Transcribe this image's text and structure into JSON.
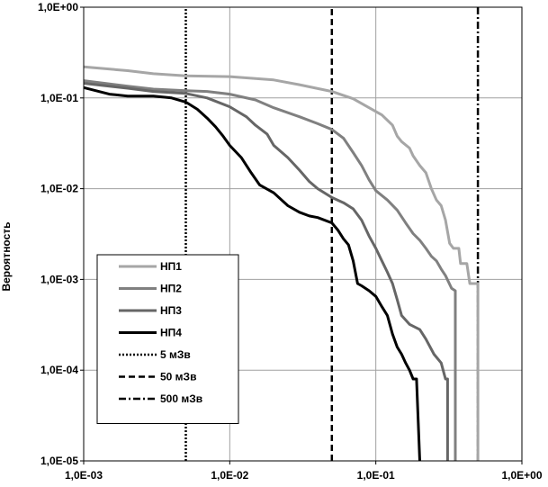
{
  "chart_data": {
    "type": "line",
    "title": "",
    "xlabel": "",
    "ylabel": "Вероятность",
    "x_scale": "log",
    "y_scale": "log",
    "xlim": [
      0.001,
      1
    ],
    "ylim": [
      1e-05,
      1
    ],
    "x_tick_labels": [
      "1,0E-03",
      "1,0E-02",
      "1,0E-01",
      "1,0E+00"
    ],
    "y_tick_labels": [
      "1,0E-05",
      "1,0E-04",
      "1,0E-03",
      "1,0E-02",
      "1,0E-01",
      "1,0E+00"
    ],
    "grid": true,
    "legend_position": "bottom-left",
    "series": [
      {
        "name": "НП1",
        "color": "#a6a6a6",
        "dash": "solid",
        "points": [
          [
            0.001,
            0.22
          ],
          [
            0.002,
            0.2
          ],
          [
            0.003,
            0.185
          ],
          [
            0.005,
            0.175
          ],
          [
            0.01,
            0.172
          ],
          [
            0.02,
            0.158
          ],
          [
            0.03,
            0.14
          ],
          [
            0.05,
            0.118
          ],
          [
            0.07,
            0.098
          ],
          [
            0.09,
            0.078
          ],
          [
            0.11,
            0.065
          ],
          [
            0.13,
            0.05
          ],
          [
            0.14,
            0.038
          ],
          [
            0.15,
            0.033
          ],
          [
            0.17,
            0.028
          ],
          [
            0.18,
            0.023
          ],
          [
            0.2,
            0.018
          ],
          [
            0.22,
            0.015
          ],
          [
            0.24,
            0.01
          ],
          [
            0.26,
            0.0075
          ],
          [
            0.28,
            0.0065
          ],
          [
            0.3,
            0.0045
          ],
          [
            0.32,
            0.0025
          ],
          [
            0.34,
            0.0022
          ],
          [
            0.37,
            0.0022
          ],
          [
            0.38,
            0.0015
          ],
          [
            0.42,
            0.0015
          ],
          [
            0.44,
            0.0009
          ],
          [
            0.5,
            0.0009
          ],
          [
            0.5,
            1e-05
          ]
        ]
      },
      {
        "name": "НП2",
        "color": "#808080",
        "dash": "solid",
        "points": [
          [
            0.001,
            0.155
          ],
          [
            0.002,
            0.135
          ],
          [
            0.003,
            0.125
          ],
          [
            0.005,
            0.12
          ],
          [
            0.007,
            0.118
          ],
          [
            0.01,
            0.11
          ],
          [
            0.015,
            0.095
          ],
          [
            0.02,
            0.078
          ],
          [
            0.03,
            0.062
          ],
          [
            0.04,
            0.052
          ],
          [
            0.05,
            0.045
          ],
          [
            0.06,
            0.036
          ],
          [
            0.07,
            0.025
          ],
          [
            0.08,
            0.018
          ],
          [
            0.09,
            0.0125
          ],
          [
            0.1,
            0.0095
          ],
          [
            0.12,
            0.0075
          ],
          [
            0.14,
            0.0058
          ],
          [
            0.16,
            0.0042
          ],
          [
            0.18,
            0.0032
          ],
          [
            0.2,
            0.0027
          ],
          [
            0.22,
            0.0022
          ],
          [
            0.24,
            0.0018
          ],
          [
            0.26,
            0.0016
          ],
          [
            0.28,
            0.0013
          ],
          [
            0.3,
            0.0011
          ],
          [
            0.33,
            0.0008
          ],
          [
            0.35,
            0.00075
          ],
          [
            0.35,
            1e-05
          ]
        ]
      },
      {
        "name": "НП3",
        "color": "#666666",
        "dash": "solid",
        "points": [
          [
            0.001,
            0.145
          ],
          [
            0.002,
            0.128
          ],
          [
            0.003,
            0.118
          ],
          [
            0.005,
            0.112
          ],
          [
            0.007,
            0.1
          ],
          [
            0.01,
            0.08
          ],
          [
            0.013,
            0.062
          ],
          [
            0.015,
            0.05
          ],
          [
            0.018,
            0.04
          ],
          [
            0.02,
            0.03
          ],
          [
            0.025,
            0.022
          ],
          [
            0.03,
            0.016
          ],
          [
            0.035,
            0.012
          ],
          [
            0.04,
            0.01
          ],
          [
            0.05,
            0.008
          ],
          [
            0.06,
            0.007
          ],
          [
            0.07,
            0.006
          ],
          [
            0.08,
            0.0045
          ],
          [
            0.09,
            0.003
          ],
          [
            0.1,
            0.0022
          ],
          [
            0.11,
            0.0016
          ],
          [
            0.12,
            0.0012
          ],
          [
            0.13,
            0.0009
          ],
          [
            0.14,
            0.0006
          ],
          [
            0.15,
            0.0004
          ],
          [
            0.17,
            0.00032
          ],
          [
            0.2,
            0.00028
          ],
          [
            0.22,
            0.00022
          ],
          [
            0.25,
            0.00015
          ],
          [
            0.28,
            0.00012
          ],
          [
            0.3,
            8e-05
          ],
          [
            0.31,
            8e-05
          ],
          [
            0.31,
            1e-05
          ]
        ]
      },
      {
        "name": "НП4",
        "color": "#000000",
        "dash": "solid",
        "points": [
          [
            0.001,
            0.13
          ],
          [
            0.0015,
            0.11
          ],
          [
            0.002,
            0.105
          ],
          [
            0.003,
            0.105
          ],
          [
            0.004,
            0.1
          ],
          [
            0.005,
            0.09
          ],
          [
            0.006,
            0.075
          ],
          [
            0.007,
            0.06
          ],
          [
            0.008,
            0.048
          ],
          [
            0.009,
            0.038
          ],
          [
            0.01,
            0.03
          ],
          [
            0.012,
            0.022
          ],
          [
            0.014,
            0.015
          ],
          [
            0.016,
            0.011
          ],
          [
            0.02,
            0.009
          ],
          [
            0.025,
            0.0065
          ],
          [
            0.03,
            0.0055
          ],
          [
            0.035,
            0.005
          ],
          [
            0.04,
            0.0048
          ],
          [
            0.05,
            0.0042
          ],
          [
            0.055,
            0.0035
          ],
          [
            0.06,
            0.0028
          ],
          [
            0.065,
            0.0024
          ],
          [
            0.07,
            0.0016
          ],
          [
            0.075,
            0.0009
          ],
          [
            0.08,
            0.00085
          ],
          [
            0.09,
            0.00075
          ],
          [
            0.1,
            0.00065
          ],
          [
            0.11,
            0.0005
          ],
          [
            0.12,
            0.0004
          ],
          [
            0.13,
            0.00025
          ],
          [
            0.14,
            0.00018
          ],
          [
            0.15,
            0.00015
          ],
          [
            0.16,
            0.00012
          ],
          [
            0.17,
            0.0001
          ],
          [
            0.18,
            8e-05
          ],
          [
            0.19,
            8e-05
          ],
          [
            0.2,
            1e-05
          ]
        ]
      },
      {
        "name": "5 мЗв",
        "color": "#000000",
        "dash": "dotted",
        "points": [
          [
            0.005,
            1e-05
          ],
          [
            0.005,
            1
          ]
        ]
      },
      {
        "name": "50 мЗв",
        "color": "#000000",
        "dash": "dashed",
        "points": [
          [
            0.05,
            1e-05
          ],
          [
            0.05,
            1
          ]
        ]
      },
      {
        "name": "500 мЗв",
        "color": "#000000",
        "dash": "dashdot",
        "points": [
          [
            0.5,
            1e-05
          ],
          [
            0.5,
            1
          ]
        ]
      }
    ]
  }
}
